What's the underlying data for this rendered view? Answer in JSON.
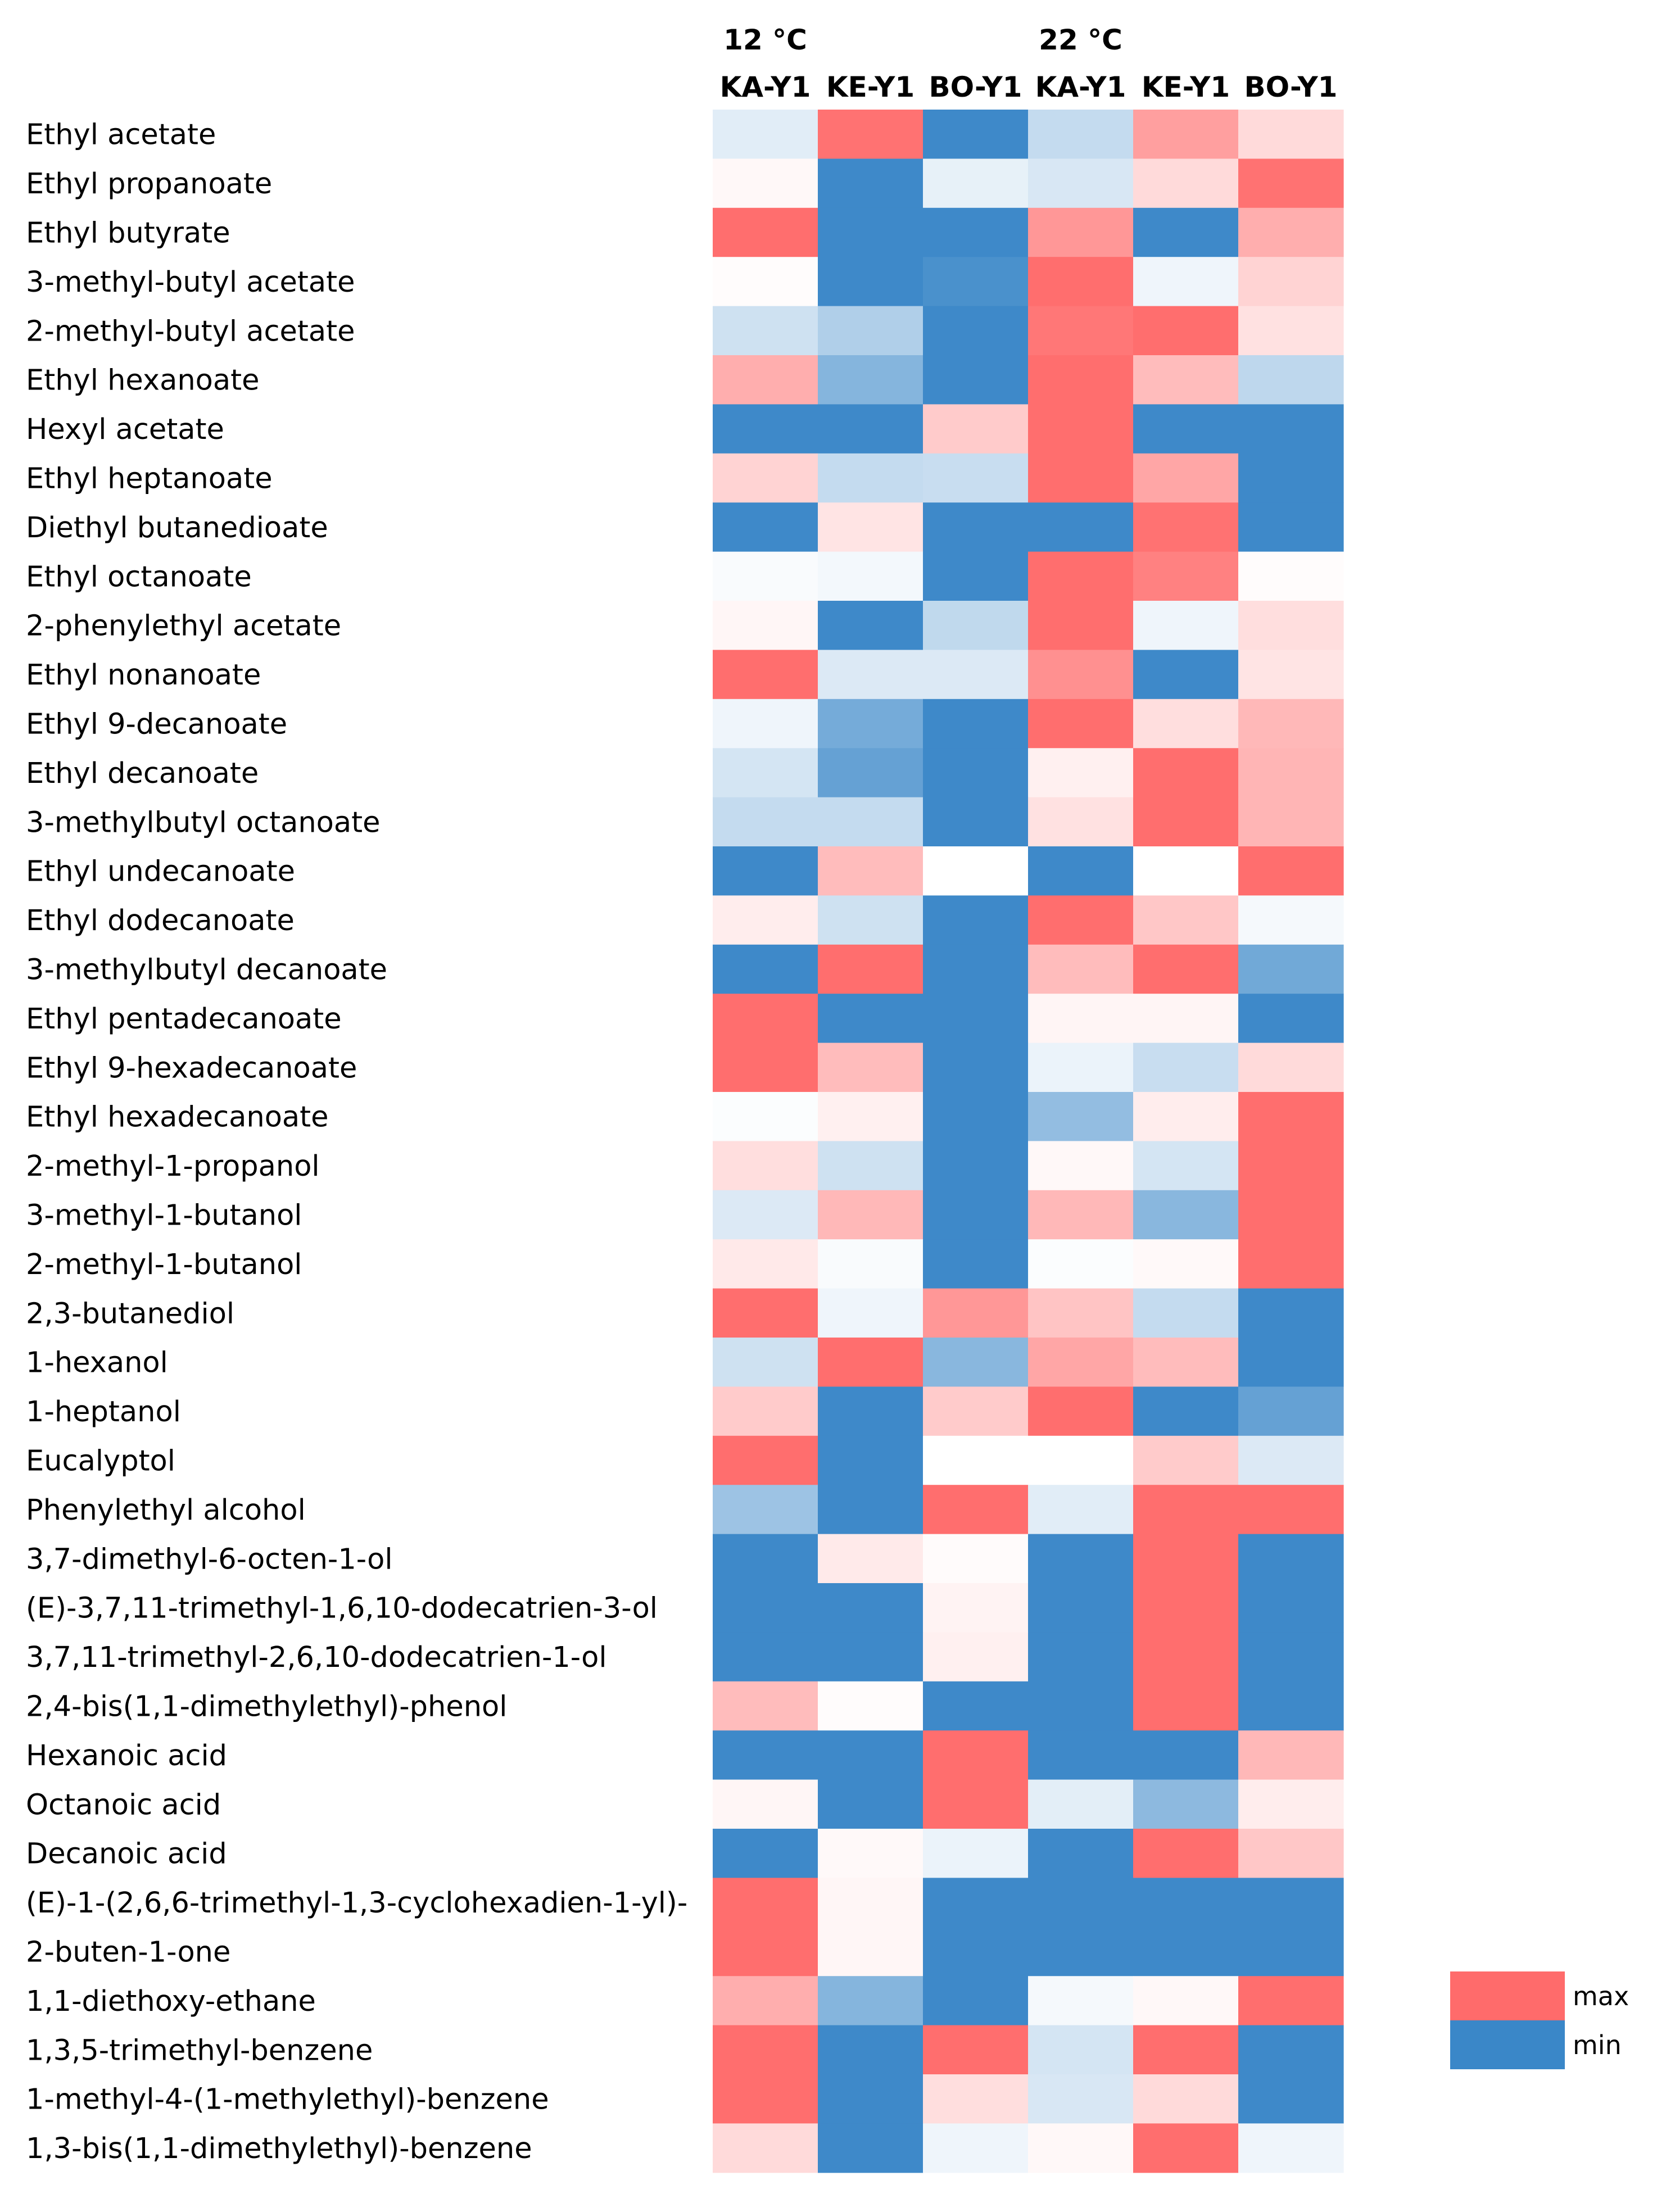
{
  "chart_data": {
    "type": "heatmap",
    "temperature_groups": [
      "12 °C",
      "22 °C"
    ],
    "columns": [
      "KA-Y1",
      "KE-Y1",
      "BO-Y1",
      "KA-Y1",
      "KE-Y1",
      "BO-Y1"
    ],
    "column_groups": [
      0,
      0,
      0,
      1,
      1,
      1
    ],
    "value_scale": "-1 = min (blue) … 0 = neutral (white) … 1 = max (red); values estimated from cell colour",
    "colors": {
      "max": "#ff6b6b",
      "min": "#3a87c8",
      "mid": "#ffffff"
    },
    "legend": {
      "max_label": "max",
      "min_label": "min"
    },
    "rows": [
      {
        "label": "Ethyl acetate",
        "values": [
          -0.15,
          0.95,
          -0.98,
          -0.3,
          0.65,
          0.25
        ]
      },
      {
        "label": "Ethyl propanoate",
        "values": [
          0.05,
          -0.98,
          -0.12,
          -0.2,
          0.25,
          0.95
        ]
      },
      {
        "label": "Ethyl butyrate",
        "values": [
          0.98,
          -0.98,
          -0.98,
          0.7,
          -0.98,
          0.55
        ]
      },
      {
        "label": "3-methyl-butyl acetate",
        "values": [
          0.02,
          -0.98,
          -0.92,
          0.98,
          -0.08,
          0.3
        ]
      },
      {
        "label": "2-methyl-butyl acetate",
        "values": [
          -0.25,
          -0.4,
          -0.98,
          0.92,
          0.98,
          0.2
        ]
      },
      {
        "label": "Ethyl hexanoate",
        "values": [
          0.55,
          -0.62,
          -0.98,
          0.98,
          0.45,
          -0.33
        ]
      },
      {
        "label": "Hexyl acetate",
        "values": [
          -0.98,
          -0.98,
          0.35,
          0.98,
          -0.98,
          -0.98
        ]
      },
      {
        "label": "Ethyl heptanoate",
        "values": [
          0.3,
          -0.3,
          -0.28,
          0.98,
          0.6,
          -0.98
        ]
      },
      {
        "label": "Diethyl butanedioate",
        "values": [
          -0.98,
          0.18,
          -0.98,
          -0.98,
          0.95,
          -0.98
        ]
      },
      {
        "label": "Ethyl octanoate",
        "values": [
          -0.03,
          -0.06,
          -0.98,
          0.98,
          0.85,
          0.02
        ]
      },
      {
        "label": "2-phenylethyl acetate",
        "values": [
          0.06,
          -0.98,
          -0.32,
          0.98,
          -0.08,
          0.22
        ]
      },
      {
        "label": "Ethyl nonanoate",
        "values": [
          0.98,
          -0.18,
          -0.18,
          0.75,
          -0.98,
          0.18
        ]
      },
      {
        "label": "Ethyl 9-decanoate",
        "values": [
          -0.08,
          -0.7,
          -0.98,
          0.98,
          0.22,
          0.48
        ]
      },
      {
        "label": "Ethyl decanoate",
        "values": [
          -0.22,
          -0.78,
          -0.98,
          0.1,
          0.98,
          0.5
        ]
      },
      {
        "label": "3-methylbutyl octanoate",
        "values": [
          -0.3,
          -0.3,
          -0.98,
          0.2,
          0.98,
          0.5
        ]
      },
      {
        "label": "Ethyl undecanoate",
        "values": [
          -0.98,
          0.45,
          0.0,
          -0.98,
          0.0,
          0.98
        ]
      },
      {
        "label": "Ethyl dodecanoate",
        "values": [
          0.12,
          -0.25,
          -0.98,
          0.98,
          0.38,
          -0.05
        ]
      },
      {
        "label": "3-methylbutyl decanoate",
        "values": [
          -0.98,
          0.98,
          -0.98,
          0.45,
          0.98,
          -0.72
        ]
      },
      {
        "label": "Ethyl pentadecanoate",
        "values": [
          0.98,
          -0.98,
          -0.98,
          0.07,
          0.07,
          -0.98
        ]
      },
      {
        "label": "Ethyl 9-hexadecanoate",
        "values": [
          0.98,
          0.45,
          -0.98,
          -0.1,
          -0.28,
          0.25
        ]
      },
      {
        "label": "Ethyl hexadecanoate",
        "values": [
          -0.02,
          0.1,
          -0.98,
          -0.55,
          0.12,
          0.98
        ]
      },
      {
        "label": "2-methyl-1-propanol",
        "values": [
          0.22,
          -0.25,
          -0.98,
          0.05,
          -0.22,
          0.98
        ]
      },
      {
        "label": "3-methyl-1-butanol",
        "values": [
          -0.18,
          0.48,
          -0.98,
          0.48,
          -0.6,
          0.98
        ]
      },
      {
        "label": "2-methyl-1-butanol",
        "values": [
          0.15,
          -0.03,
          -0.98,
          -0.02,
          0.04,
          0.98
        ]
      },
      {
        "label": "2,3-butanediol",
        "values": [
          0.98,
          -0.08,
          0.7,
          0.4,
          -0.3,
          -0.98
        ]
      },
      {
        "label": "1-hexanol",
        "values": [
          -0.25,
          0.98,
          -0.6,
          0.6,
          0.45,
          -0.98
        ]
      },
      {
        "label": "1-heptanol",
        "values": [
          0.35,
          -0.98,
          0.35,
          0.98,
          -0.98,
          -0.78
        ]
      },
      {
        "label": "Eucalyptol",
        "values": [
          0.98,
          -0.98,
          0.0,
          0.0,
          0.35,
          -0.18
        ]
      },
      {
        "label": "Phenylethyl alcohol",
        "values": [
          -0.5,
          -0.98,
          0.98,
          -0.15,
          0.98,
          0.98
        ]
      },
      {
        "label": "3,7-dimethyl-6-octen-1-ol",
        "values": [
          -0.98,
          0.14,
          0.03,
          -0.98,
          0.98,
          -0.98
        ]
      },
      {
        "label": "(E)-3,7,11-trimethyl-1,6,10-dodecatrien-3-ol",
        "values": [
          -0.98,
          -0.98,
          0.08,
          -0.98,
          0.98,
          -0.98
        ]
      },
      {
        "label": "3,7,11-trimethyl-2,6,10-dodecatrien-1-ol",
        "values": [
          -0.98,
          -0.98,
          0.1,
          -0.98,
          0.98,
          -0.98
        ]
      },
      {
        "label": "2,4-bis(1,1-dimethylethyl)-phenol",
        "values": [
          0.45,
          0.02,
          -0.98,
          -0.98,
          0.98,
          -0.98
        ]
      },
      {
        "label": "Hexanoic acid",
        "values": [
          -0.98,
          -0.98,
          0.98,
          -0.98,
          -0.98,
          0.48
        ]
      },
      {
        "label": "Octanoic acid",
        "values": [
          0.06,
          -0.98,
          0.98,
          -0.14,
          -0.58,
          0.12
        ]
      },
      {
        "label": "Decanoic acid",
        "values": [
          -0.98,
          0.04,
          -0.1,
          -0.98,
          0.98,
          0.38
        ]
      },
      {
        "label": "(E)-1-(2,6,6-trimethyl-1,3-cyclohexadien-1-yl)-\n2-buten-1-one",
        "lines": [
          "(E)-1-(2,6,6-trimethyl-1,3-cyclohexadien-1-yl)-",
          "2-buten-1-one"
        ],
        "span": 2,
        "values": [
          0.98,
          0.06,
          -0.98,
          -0.98,
          -0.98,
          -0.98
        ]
      },
      {
        "label": "1,1-diethoxy-ethane",
        "values": [
          0.55,
          -0.62,
          -0.98,
          -0.05,
          0.05,
          0.98
        ]
      },
      {
        "label": "1,3,5-trimethyl-benzene",
        "values": [
          0.98,
          -0.98,
          0.98,
          -0.22,
          0.98,
          -0.98
        ]
      },
      {
        "label": "1-methyl-4-(1-methylethyl)-benzene",
        "values": [
          0.98,
          -0.98,
          0.22,
          -0.2,
          0.25,
          -0.98
        ]
      },
      {
        "label": "1,3-bis(1,1-dimethylethyl)-benzene",
        "values": [
          0.25,
          -0.98,
          -0.08,
          0.05,
          0.98,
          -0.08
        ]
      }
    ]
  }
}
